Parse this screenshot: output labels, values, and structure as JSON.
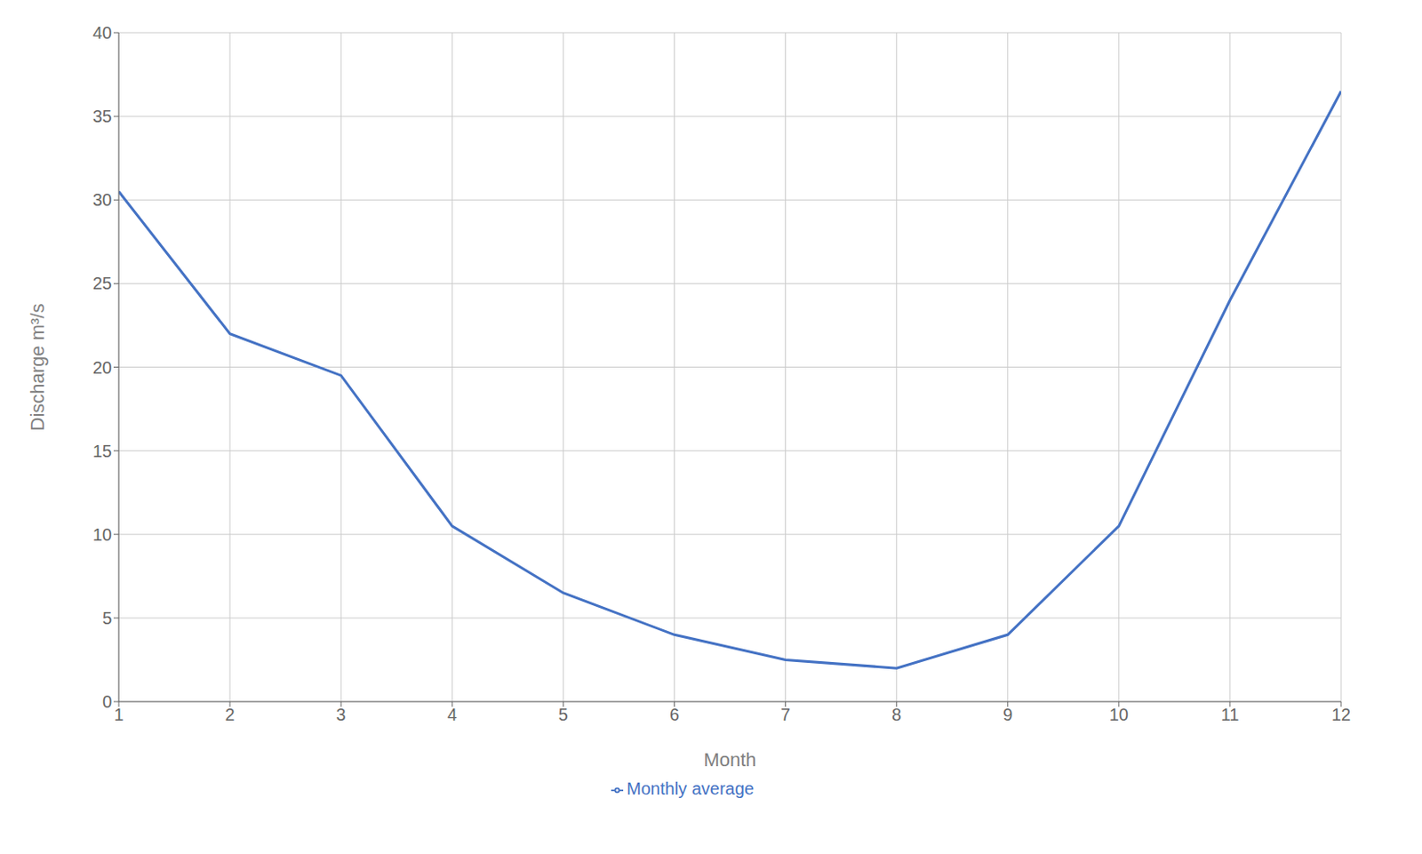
{
  "chart_data": {
    "type": "line",
    "x": [
      1,
      2,
      3,
      4,
      5,
      6,
      7,
      8,
      9,
      10,
      11,
      12
    ],
    "series": [
      {
        "name": "Monthly average",
        "color": "#4472C4",
        "values": [
          30.5,
          22.0,
          19.5,
          10.5,
          6.5,
          4.0,
          2.5,
          2.0,
          4.0,
          10.5,
          24.0,
          36.5
        ]
      }
    ],
    "xlabel": "Month",
    "ylabel": "Discharge m³/s",
    "xlim": [
      1,
      12
    ],
    "xticks": [
      1,
      2,
      3,
      4,
      5,
      6,
      7,
      8,
      9,
      10,
      11,
      12
    ],
    "ylim": [
      0,
      40
    ],
    "yticks": [
      0,
      5,
      10,
      15,
      20,
      25,
      30,
      35,
      40
    ],
    "grid": true,
    "legend": "bottom"
  }
}
